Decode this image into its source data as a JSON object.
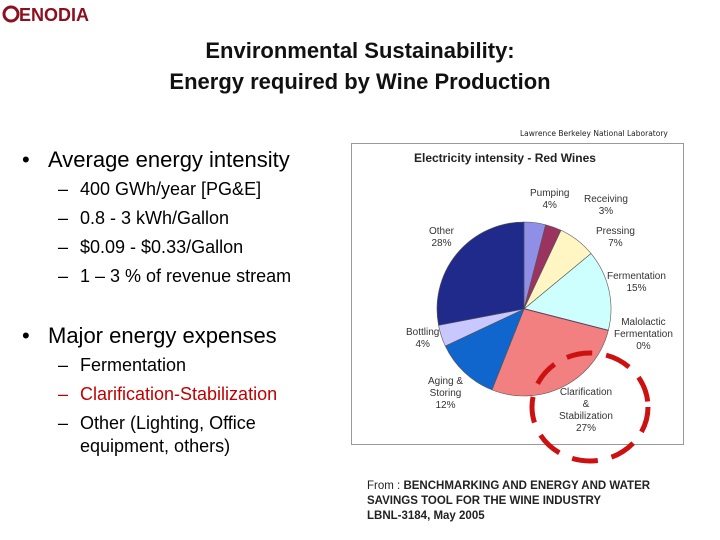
{
  "logo": {
    "text": "OENODIA"
  },
  "title": {
    "line1": "Environmental Sustainability:",
    "line2": "Energy required by Wine Production"
  },
  "source_top": "Lawrence Berkeley National Laboratory",
  "bullets": {
    "intensity": {
      "heading": "Average energy intensity",
      "items": [
        "400 GWh/year [PG&E]",
        "0.8 - 3 kWh/Gallon",
        "$0.09 - $0.33/Gallon",
        "1 – 3 % of revenue stream"
      ]
    },
    "expenses": {
      "heading": "Major energy expenses",
      "item1": "Fermentation",
      "item2": "Clarification-Stabilization",
      "item3_line1": "Other (Lighting, Office",
      "item3_line2": "equipment, others)"
    }
  },
  "chart_data": {
    "type": "pie",
    "title": "Electricity intensity - Red Wines",
    "categories": [
      "Pumping",
      "Receiving",
      "Pressing",
      "Fermentation",
      "Malolactic Fermentation",
      "Clarification & Stabilization",
      "Aging & Storing",
      "Bottling",
      "Other"
    ],
    "values": [
      4,
      3,
      7,
      15,
      0,
      27,
      12,
      4,
      28
    ],
    "percent_labels": [
      "4%",
      "3%",
      "7%",
      "15%",
      "0%",
      "27%",
      "12%",
      "4%",
      "28%"
    ],
    "colors": [
      "#8f8fe8",
      "#9a3360",
      "#fff6c4",
      "#ccfffd",
      "#6a2266",
      "#f28080",
      "#1066cc",
      "#c8c8ff",
      "#1f2a8a"
    ],
    "label_lines": {
      "pumping": "Pumping",
      "receiving": "Receiving",
      "pressing": "Pressing",
      "fermentation": "Fermentation",
      "malolactic1": "Malolactic",
      "malolactic2": "Fermentation",
      "clar1": "Clarification",
      "clar2": "&",
      "clar3": "Stabilization",
      "aging1": "Aging &",
      "aging2": "Storing",
      "bottling": "Bottling",
      "other": "Other"
    }
  },
  "citation": {
    "from": "From :",
    "line1": "BENCHMARKING AND ENERGY AND WATER",
    "line2": "SAVINGS TOOL FOR THE WINE INDUSTRY",
    "line3": "LBNL-3184, May 2005"
  },
  "highlight_color": "#cc1111"
}
